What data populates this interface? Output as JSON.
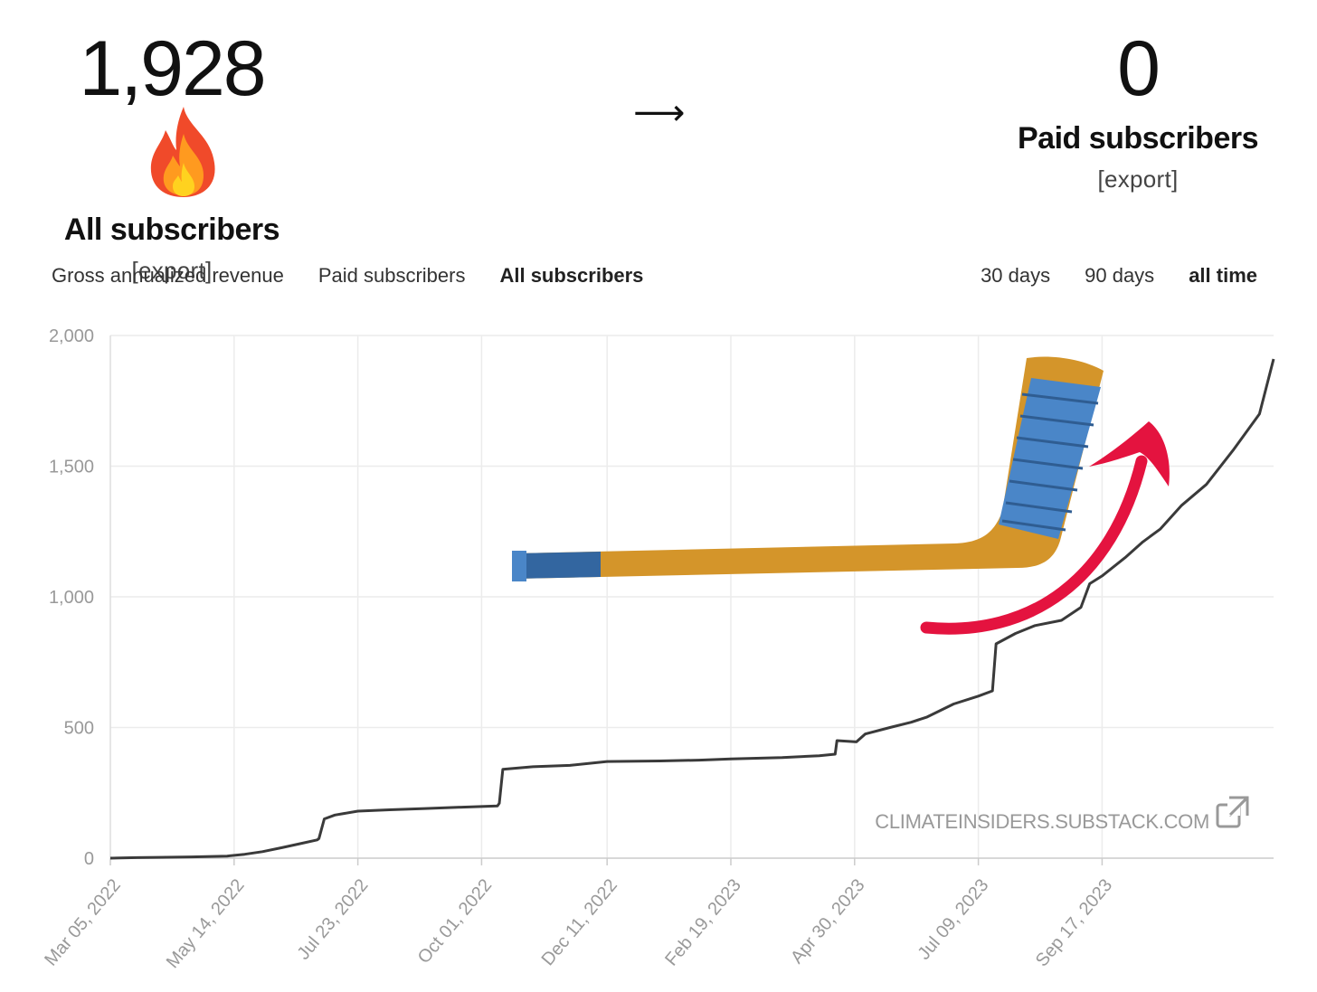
{
  "stats": {
    "all": {
      "value": "1,928",
      "label": "All subscribers",
      "export": "[export]",
      "icon": "fire-icon"
    },
    "paid": {
      "value": "0",
      "label": "Paid subscribers",
      "export": "[export]"
    },
    "separator_icon": "arrow-right-icon",
    "separator": "⟶"
  },
  "metric_tabs": [
    {
      "label": "Gross annualized revenue",
      "active": false
    },
    {
      "label": "Paid subscribers",
      "active": false
    },
    {
      "label": "All subscribers",
      "active": true
    }
  ],
  "range_tabs": [
    {
      "label": "30 days",
      "active": false
    },
    {
      "label": "90 days",
      "active": false
    },
    {
      "label": "all time",
      "active": true
    }
  ],
  "watermark": {
    "text": "CLIMATEINSIDERS.SUBSTACK.COM",
    "icon": "external-link-icon"
  },
  "decorations": [
    "hockey-stick-icon",
    "red-curved-arrow-icon"
  ],
  "colors": {
    "line": "#3a3a3a",
    "grid": "#ececec",
    "arrow": "#e4133f",
    "stick": "#d4952a",
    "tape": "#4a86c8"
  },
  "chart_data": {
    "type": "line",
    "xlabel": "",
    "ylabel": "",
    "ylim": [
      0,
      2000
    ],
    "yticks": [
      0,
      500,
      1000,
      1500,
      2000
    ],
    "ytick_labels": [
      "0",
      "500",
      "1,000",
      "1,500",
      "2,000"
    ],
    "xlim": [
      "2022-03-05",
      "2023-12-23"
    ],
    "xtick_dates": [
      "2022-03-05",
      "2022-05-14",
      "2022-07-23",
      "2022-10-01",
      "2022-12-11",
      "2023-02-19",
      "2023-04-30",
      "2023-07-09",
      "2023-09-17"
    ],
    "xtick_labels": [
      "Mar 05, 2022",
      "May 14, 2022",
      "Jul 23, 2022",
      "Oct 01, 2022",
      "Dec 11, 2022",
      "Feb 19, 2023",
      "Apr 30, 2023",
      "Jul 09, 2023",
      "Sep 17, 2023"
    ],
    "grid": true,
    "series": [
      {
        "x": [
          "2022-03-05",
          "2022-03-20",
          "2022-04-01",
          "2022-04-20",
          "2022-05-10",
          "2022-05-20",
          "2022-05-30",
          "2022-06-10",
          "2022-06-20",
          "2022-06-30",
          "2022-07-01",
          "2022-07-04",
          "2022-07-10",
          "2022-07-23",
          "2022-08-10",
          "2022-08-30",
          "2022-09-20",
          "2022-10-10",
          "2022-10-11",
          "2022-10-13",
          "2022-10-30",
          "2022-11-20",
          "2022-12-11",
          "2023-01-10",
          "2023-02-01",
          "2023-02-19",
          "2023-03-20",
          "2023-04-10",
          "2023-04-19",
          "2023-04-20",
          "2023-05-01",
          "2023-05-06",
          "2023-05-20",
          "2023-06-01",
          "2023-06-10",
          "2023-06-25",
          "2023-07-09",
          "2023-07-17",
          "2023-07-19",
          "2023-07-30",
          "2023-08-10",
          "2023-08-25",
          "2023-09-05",
          "2023-09-10",
          "2023-09-17",
          "2023-09-30",
          "2023-10-10",
          "2023-10-20",
          "2023-11-01",
          "2023-11-15",
          "2023-11-30",
          "2023-12-15",
          "2023-12-23"
        ],
        "y": [
          0,
          2,
          3,
          5,
          8,
          15,
          25,
          40,
          55,
          70,
          75,
          150,
          165,
          180,
          185,
          190,
          195,
          200,
          210,
          340,
          350,
          355,
          370,
          372,
          375,
          380,
          385,
          392,
          398,
          450,
          445,
          475,
          500,
          520,
          540,
          590,
          620,
          640,
          820,
          860,
          890,
          910,
          960,
          1050,
          1080,
          1150,
          1210,
          1260,
          1350,
          1430,
          1560,
          1700,
          1910
        ]
      }
    ]
  }
}
